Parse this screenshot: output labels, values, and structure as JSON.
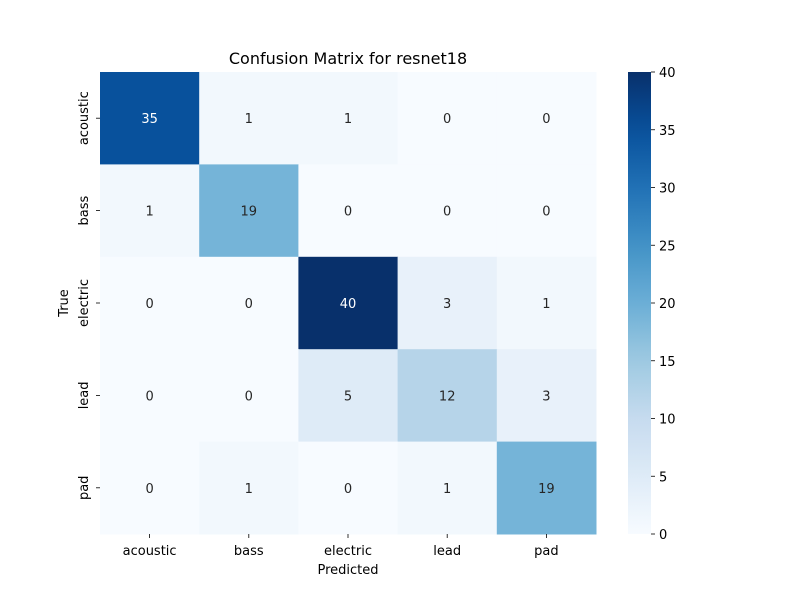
{
  "chart_data": {
    "type": "heatmap",
    "title": "Confusion Matrix for resnet18",
    "xlabel": "Predicted",
    "ylabel": "True",
    "x_categories": [
      "acoustic",
      "bass",
      "electric",
      "lead",
      "pad"
    ],
    "y_categories": [
      "acoustic",
      "bass",
      "electric",
      "lead",
      "pad"
    ],
    "values": [
      [
        35,
        1,
        1,
        0,
        0
      ],
      [
        1,
        19,
        0,
        0,
        0
      ],
      [
        0,
        0,
        40,
        3,
        1
      ],
      [
        0,
        0,
        5,
        12,
        3
      ],
      [
        0,
        1,
        0,
        1,
        19
      ]
    ],
    "colorbar": {
      "min": 0,
      "max": 40,
      "ticks": [
        0,
        5,
        10,
        15,
        20,
        25,
        30,
        35,
        40
      ],
      "colormap": "Blues",
      "low_color": "#f7fbff",
      "high_color": "#08306b"
    },
    "grid": false,
    "legend": "colorbar-right"
  }
}
